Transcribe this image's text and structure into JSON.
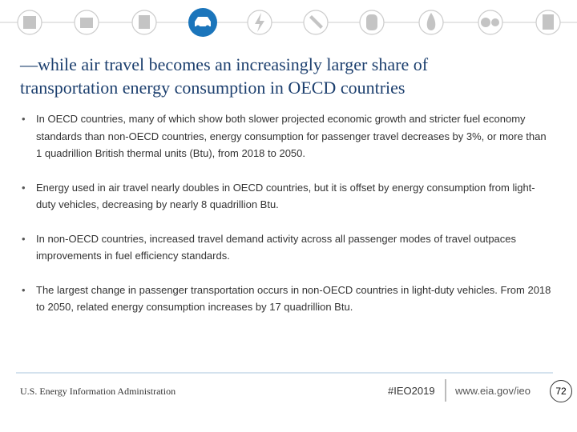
{
  "header": {
    "title_lines": [
      "—while air travel becomes an increasingly larger share of",
      "transportation energy consumption in OECD countries"
    ]
  },
  "bullets": [
    "In OECD countries, many of which show both slower projected economic growth and stricter fuel economy standards than non-OECD countries, energy consumption for passenger travel decreases by 3%, or more than 1 quadrillion British thermal units (Btu), from 2018 to 2050.",
    "Energy used in air travel nearly doubles in OECD countries, but it is offset by energy consumption from light-duty vehicles, decreasing by nearly 8 quadrillion Btu.",
    "In non-OECD countries, increased travel demand activity across all passenger modes of travel outpaces improvements in fuel efficiency standards.",
    "The largest change in passenger transportation occurs in non-OECD countries in light-duty vehicles. From 2018 to 2050, related energy consumption increases by 17 quadrillion Btu."
  ],
  "footer": {
    "organization": "U.S. Energy Information Administration",
    "hashtag": "#IEO2019",
    "url": "www.eia.gov/ieo",
    "page_number": "72"
  }
}
